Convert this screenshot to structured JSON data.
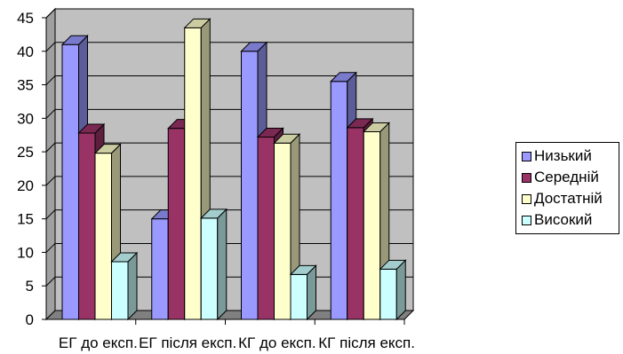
{
  "chart_data": {
    "type": "bar",
    "categories": [
      "ЕГ до експ.",
      "ЕГ після експ.",
      "КГ до експ.",
      "КГ після експ."
    ],
    "series": [
      {
        "name": "Низький",
        "color": "#9999ff",
        "values": [
          41,
          15,
          40,
          35.5
        ]
      },
      {
        "name": "Середній",
        "color": "#993366",
        "values": [
          27.8,
          28.5,
          27.2,
          28.6
        ]
      },
      {
        "name": "Достатній",
        "color": "#ffffcc",
        "values": [
          24.8,
          43.5,
          26.3,
          28
        ]
      },
      {
        "name": "Високий",
        "color": "#ccffff",
        "values": [
          8.6,
          15.1,
          6.7,
          7.5
        ]
      }
    ],
    "y_ticks": [
      "0",
      "5",
      "10",
      "15",
      "20",
      "25",
      "30",
      "35",
      "40",
      "45"
    ],
    "ylim": [
      0,
      45
    ],
    "grid": true,
    "legend_position": "right",
    "style": "3d-clustered-column",
    "wall_color": "#c0c0c0",
    "floor_color": "#808080",
    "title": "",
    "xlabel": "",
    "ylabel": ""
  }
}
